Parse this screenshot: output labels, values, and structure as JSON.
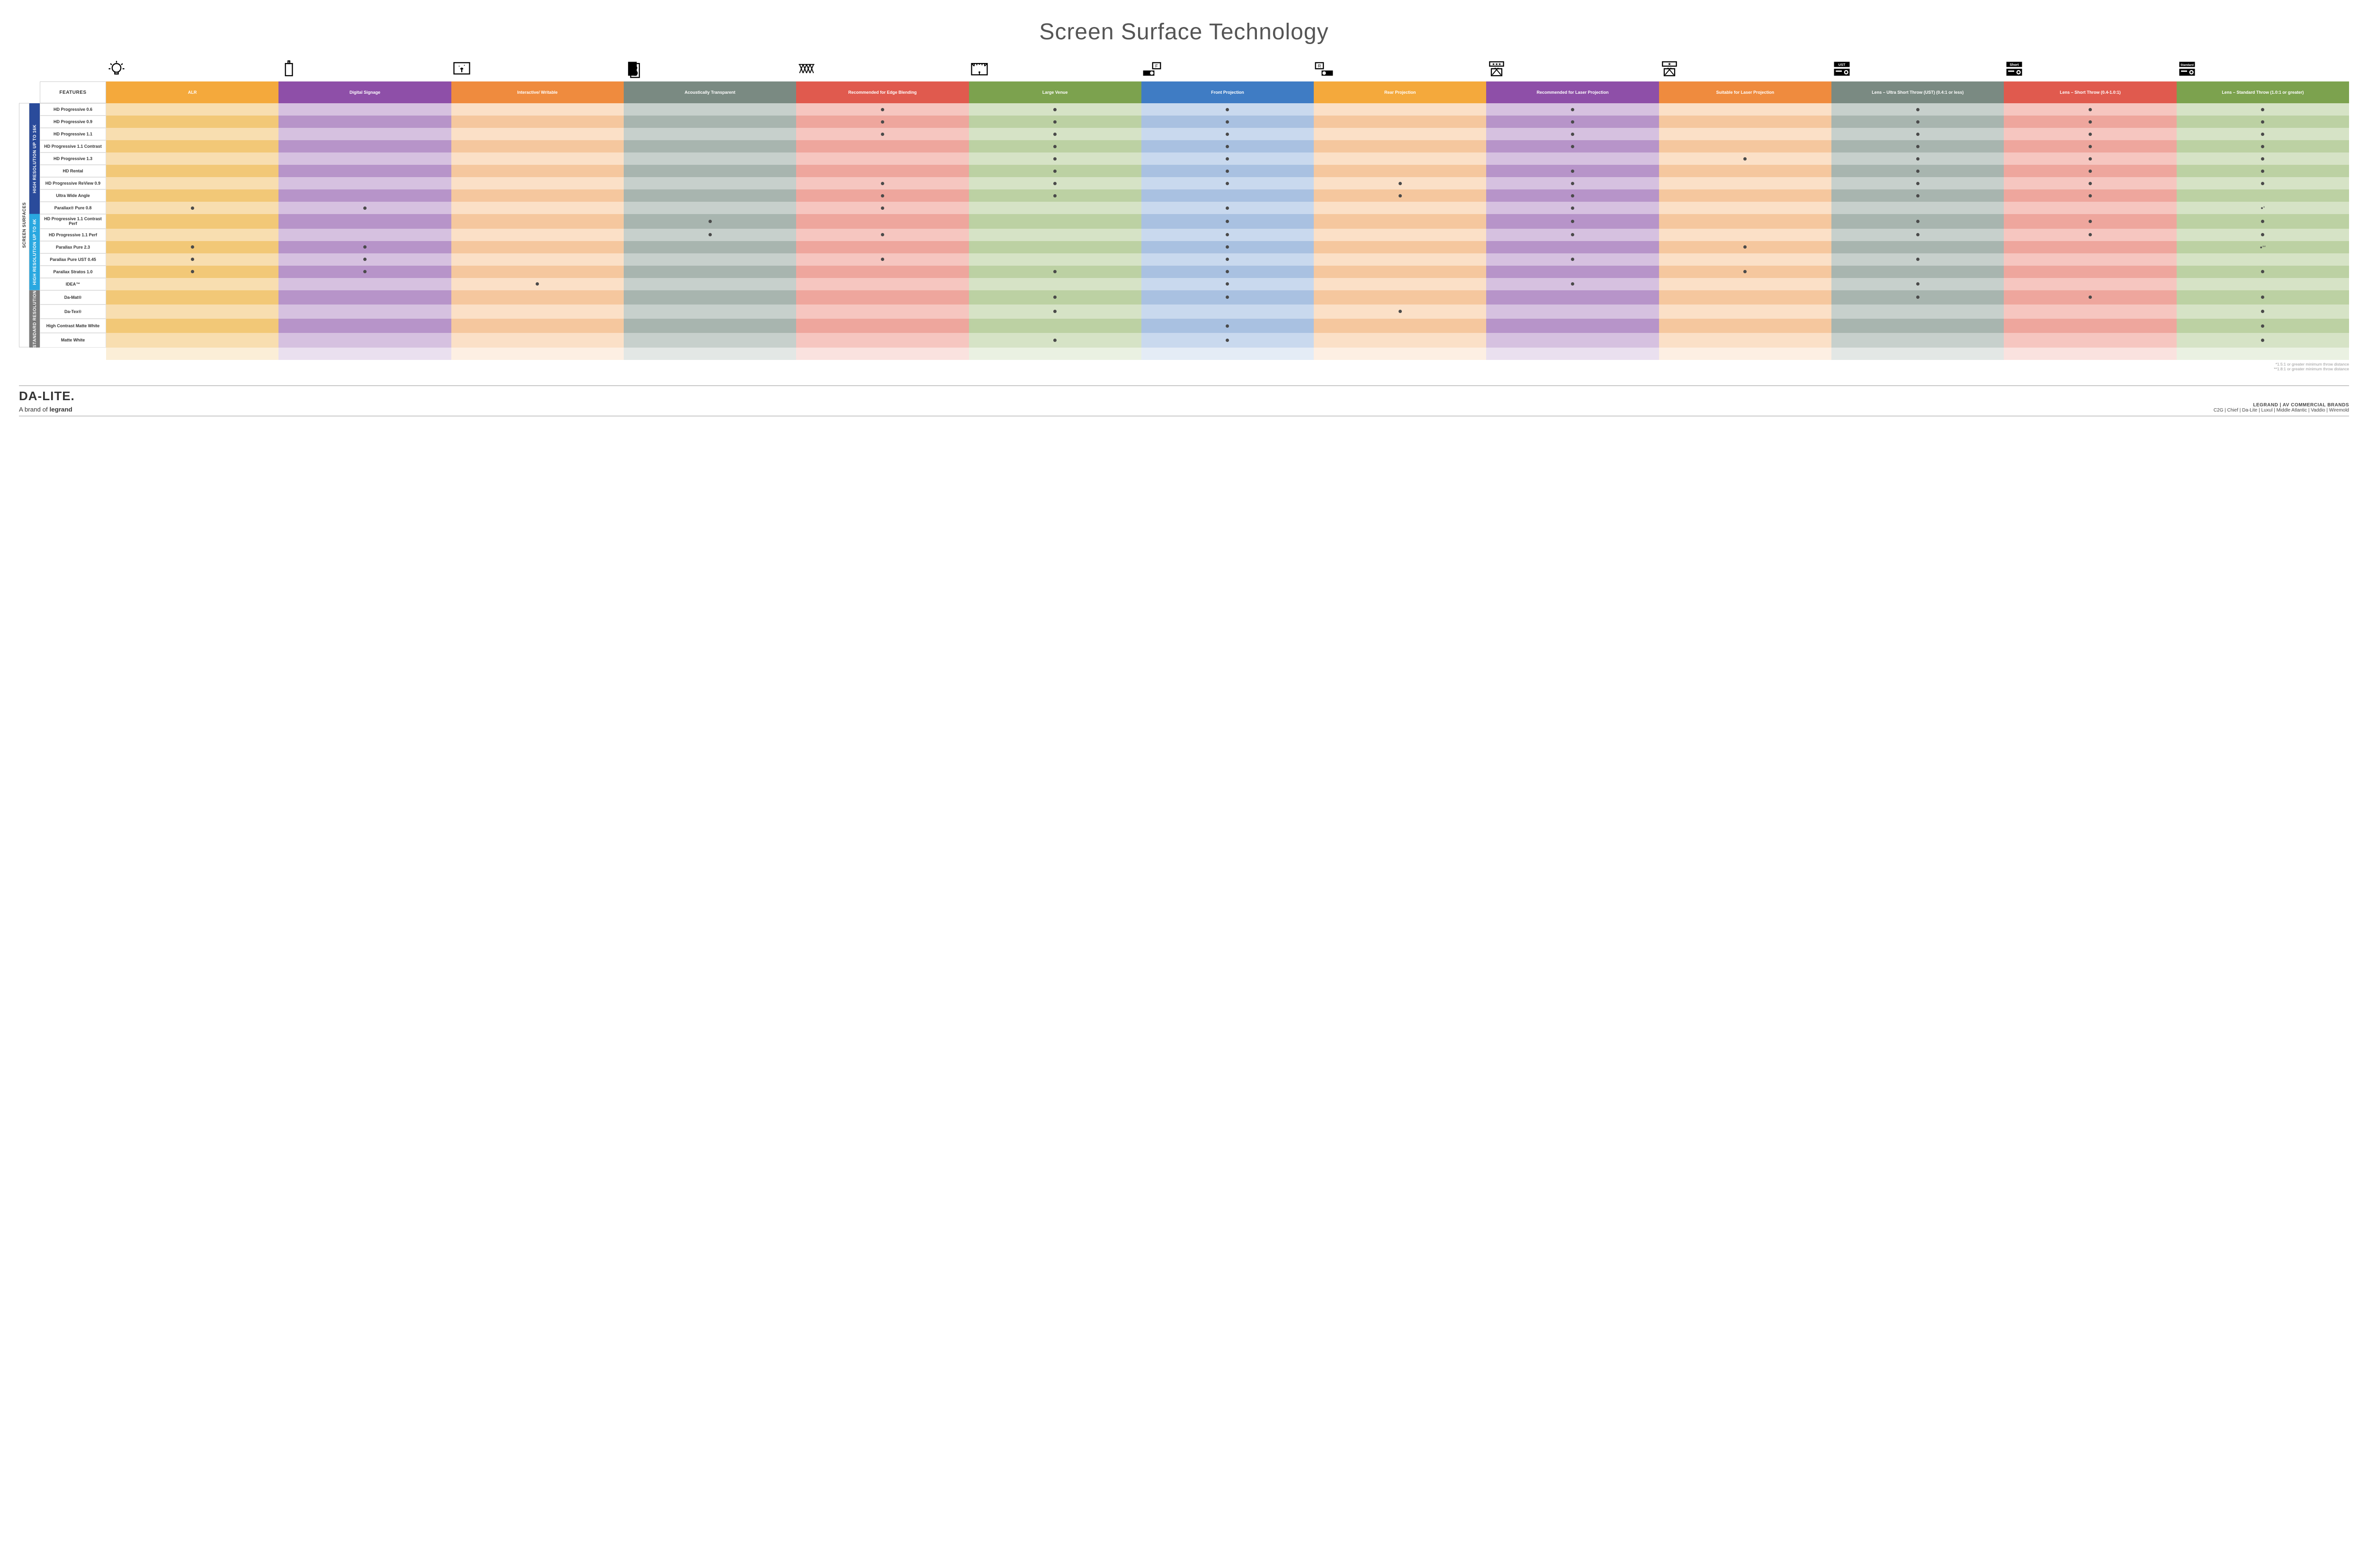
{
  "title": "Screen Surface Technology",
  "features_label": "FEATURES",
  "outer_label": "SCREEN SURFACES",
  "groups": [
    {
      "key": "g16k",
      "label": "HIGH RESOLUTION UP TO 16K",
      "bg": "#2a4b9b"
    },
    {
      "key": "g4k",
      "label": "HIGH RESOLUTION UP TO 4K",
      "bg": "#2aa8e0"
    },
    {
      "key": "gstd",
      "label": "STANDARD RESOLUTION",
      "bg": "#7a7a7a"
    }
  ],
  "columns": [
    {
      "key": "alr",
      "label": "ALR",
      "light": "#f8deb0",
      "dark": "#f2c877",
      "hdr": "#f4a93c"
    },
    {
      "key": "signage",
      "label": "Digital Signage",
      "light": "#d6c1e0",
      "dark": "#b794c9",
      "hdr": "#8e4fa8"
    },
    {
      "key": "interactive",
      "label": "Interactive/ Writable",
      "light": "#fbe0c7",
      "dark": "#f5c79e",
      "hdr": "#ef8b3e"
    },
    {
      "key": "acoustic",
      "label": "Acoustically Transparent",
      "light": "#c7d0cc",
      "dark": "#a8b5af",
      "hdr": "#7a8a82"
    },
    {
      "key": "edge",
      "label": "Recommended for Edge Blending",
      "light": "#f6c6c0",
      "dark": "#eea69d",
      "hdr": "#e05a4e"
    },
    {
      "key": "venue",
      "label": "Large Venue",
      "light": "#d6e3c6",
      "dark": "#bcd1a3",
      "hdr": "#7ca24e"
    },
    {
      "key": "front",
      "label": "Front Projection",
      "light": "#c9d9ee",
      "dark": "#a9c1e1",
      "hdr": "#3f7cc4"
    },
    {
      "key": "rear",
      "label": "Rear Projection",
      "light": "#fbe0c7",
      "dark": "#f5c79e",
      "hdr": "#f4a93c"
    },
    {
      "key": "laser_rec",
      "label": "Recommended for Laser Projection",
      "light": "#d6c1e0",
      "dark": "#b794c9",
      "hdr": "#8e4fa8"
    },
    {
      "key": "laser_suit",
      "label": "Suitable for Laser Projection",
      "light": "#fbe0c7",
      "dark": "#f5c79e",
      "hdr": "#ef8b3e"
    },
    {
      "key": "ust",
      "label": "Lens – Ultra Short Throw (UST) (0.4:1 or less)",
      "light": "#c7d0cc",
      "dark": "#a8b5af",
      "hdr": "#7a8a82"
    },
    {
      "key": "short",
      "label": "Lens – Short Throw (0.4-1.0:1)",
      "light": "#f6c6c0",
      "dark": "#eea69d",
      "hdr": "#e05a4e"
    },
    {
      "key": "std",
      "label": "Lens – Standard Throw (1.0:1 or greater)",
      "light": "#d6e3c6",
      "dark": "#bcd1a3",
      "hdr": "#7ca24e"
    }
  ],
  "rows": [
    {
      "group": "g16k",
      "label": "HD Progressive 0.6",
      "dots": [
        "edge",
        "venue",
        "front",
        "laser_rec",
        "ust",
        "short",
        "std"
      ]
    },
    {
      "group": "g16k",
      "label": "HD Progressive 0.9",
      "dots": [
        "edge",
        "venue",
        "front",
        "laser_rec",
        "ust",
        "short",
        "std"
      ]
    },
    {
      "group": "g16k",
      "label": "HD Progressive 1.1",
      "dots": [
        "edge",
        "venue",
        "front",
        "laser_rec",
        "ust",
        "short",
        "std"
      ]
    },
    {
      "group": "g16k",
      "label": "HD Progressive 1.1 Contrast",
      "dots": [
        "venue",
        "front",
        "laser_rec",
        "ust",
        "short",
        "std"
      ]
    },
    {
      "group": "g16k",
      "label": "HD Progressive 1.3",
      "dots": [
        "venue",
        "front",
        "laser_suit",
        "ust",
        "short",
        "std"
      ]
    },
    {
      "group": "g16k",
      "label": "HD Rental",
      "dots": [
        "venue",
        "front",
        "laser_rec",
        "ust",
        "short",
        "std"
      ]
    },
    {
      "group": "g16k",
      "label": "HD Progressive ReView 0.9",
      "dots": [
        "edge",
        "venue",
        "front",
        "rear",
        "laser_rec",
        "ust",
        "short",
        "std"
      ]
    },
    {
      "group": "g16k",
      "label": "Ultra Wide Angle",
      "dots": [
        "edge",
        "venue",
        "rear",
        "laser_rec",
        "ust",
        "short"
      ]
    },
    {
      "group": "g16k",
      "label": "Parallax® Pure 0.8",
      "dots": [
        "alr",
        "signage",
        "edge",
        "front",
        "laser_rec"
      ],
      "note_std": "●*"
    },
    {
      "group": "g4k",
      "label": "HD Progressive 1.1 Contrast Perf",
      "dots": [
        "acoustic",
        "front",
        "laser_rec",
        "ust",
        "short",
        "std"
      ]
    },
    {
      "group": "g4k",
      "label": "HD Progressive 1.1 Perf",
      "dots": [
        "acoustic",
        "edge",
        "front",
        "laser_rec",
        "ust",
        "short",
        "std"
      ]
    },
    {
      "group": "g4k",
      "label": "Parallax Pure 2.3",
      "dots": [
        "alr",
        "signage",
        "front",
        "laser_suit"
      ],
      "note_std": "●**"
    },
    {
      "group": "g4k",
      "label": "Parallax Pure UST 0.45",
      "dots": [
        "alr",
        "signage",
        "edge",
        "front",
        "laser_rec",
        "ust"
      ]
    },
    {
      "group": "g4k",
      "label": "Parallax Stratos 1.0",
      "dots": [
        "alr",
        "signage",
        "venue",
        "front",
        "laser_suit",
        "std"
      ]
    },
    {
      "group": "g4k",
      "label": "IDEA™",
      "dots": [
        "interactive",
        "front",
        "laser_rec",
        "ust"
      ]
    },
    {
      "group": "gstd",
      "label": "Da-Mat®",
      "dots": [
        "venue",
        "front",
        "ust",
        "short",
        "std"
      ]
    },
    {
      "group": "gstd",
      "label": "Da-Tex®",
      "dots": [
        "venue",
        "rear",
        "std"
      ]
    },
    {
      "group": "gstd",
      "label": "High Contrast Matte White",
      "dots": [
        "front",
        "std"
      ]
    },
    {
      "group": "gstd",
      "label": "Matte White",
      "dots": [
        "venue",
        "front",
        "std"
      ]
    }
  ],
  "icons": [
    "bulb",
    "signage",
    "touch",
    "speaker",
    "venue-tri",
    "stage",
    "proj-front",
    "proj-rear",
    "laser-rec",
    "laser-suit",
    "proj-ust",
    "proj-short",
    "proj-std"
  ],
  "footnotes": [
    "*1.5:1 or greater minimum throw distance",
    "**1.8:1 or greater minimum throw distance"
  ],
  "footer": {
    "logo": "DA-LITE.",
    "logo_sub_pre": "A brand of ",
    "logo_sub_brand": "legrand",
    "brands_main": "LEGRAND | AV COMMERCIAL BRANDS",
    "brands_list": "C2G  |  Chief  |  Da-Lite  |  Luxul  |  Middle Atlantic  |  Vaddio  |  Wiremold"
  }
}
